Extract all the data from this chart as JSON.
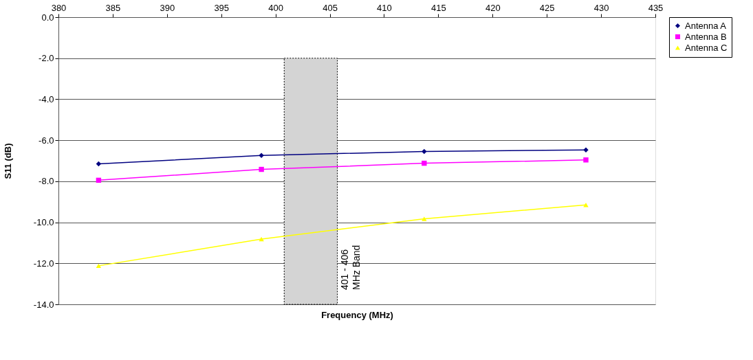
{
  "chart_data": {
    "type": "line",
    "xlabel": "Frequency (MHz)",
    "ylabel": "S11 (dB)",
    "x": [
      383.7,
      398.7,
      413.7,
      428.6
    ],
    "series": [
      {
        "name": "Antenna A",
        "color": "#000080",
        "marker": "diamond",
        "values": [
          -7.15,
          -6.74,
          -6.55,
          -6.47
        ]
      },
      {
        "name": "Antenna B",
        "color": "#ff00ff",
        "marker": "square",
        "values": [
          -7.95,
          -7.42,
          -7.12,
          -6.96
        ]
      },
      {
        "name": "Antenna C",
        "color": "#ffff00",
        "marker": "triangle",
        "values": [
          -12.12,
          -10.82,
          -9.83,
          -9.15
        ]
      }
    ],
    "xlim": [
      380,
      435
    ],
    "xticks": [
      380,
      385,
      390,
      395,
      400,
      405,
      410,
      415,
      420,
      425,
      430,
      435
    ],
    "ylim": [
      -14,
      0
    ],
    "yticks": [
      {
        "value": 0,
        "label": "0.0"
      },
      {
        "value": -2,
        "label": "-2.0"
      },
      {
        "value": -4,
        "label": "-4.0"
      },
      {
        "value": -6,
        "label": "-6.0"
      },
      {
        "value": -8,
        "label": "-8.0"
      },
      {
        "value": -10,
        "label": "-10.0"
      },
      {
        "value": -12,
        "label": "-12.0"
      },
      {
        "value": -14,
        "label": "-14.0"
      }
    ],
    "bands": [
      {
        "axis": "x",
        "from": 400.8,
        "to": 405.7,
        "label": "401 - 406\nMHz Band",
        "color": "#d4d4d4"
      }
    ],
    "grid": "y",
    "legend": "right",
    "line_style": "solid"
  }
}
